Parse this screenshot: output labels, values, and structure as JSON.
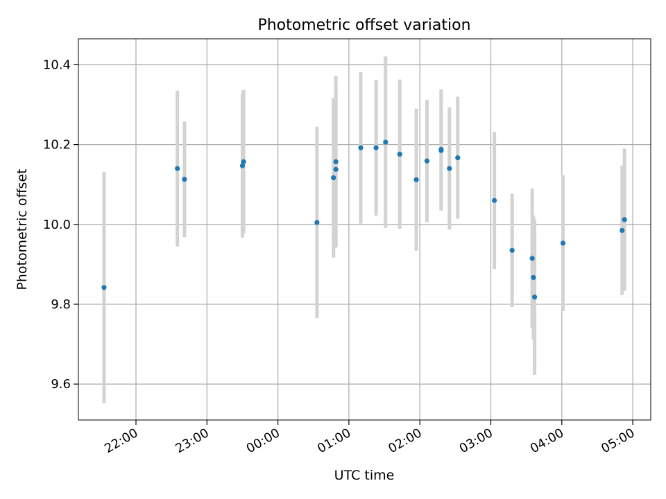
{
  "chart_data": {
    "type": "scatter",
    "title": "Photometric offset variation",
    "xlabel": "UTC time",
    "ylabel": "Photometric offset",
    "grid": true,
    "x_axis": {
      "kind": "time",
      "tick_labels": [
        "22:00",
        "23:00",
        "00:00",
        "01:00",
        "02:00",
        "03:00",
        "04:00",
        "05:00"
      ]
    },
    "ylim": [
      9.51,
      10.465
    ],
    "y_ticks": [
      "9.6",
      "9.8",
      "10.0",
      "10.2",
      "10.4"
    ],
    "colors": {
      "marker": "#1f77b4",
      "errorbar": "#d3d3d3",
      "grid": "#b0b0b0"
    },
    "points": [
      {
        "time": "21:33",
        "y": 9.842,
        "err": 0.29
      },
      {
        "time": "22:35",
        "y": 10.14,
        "err": 0.195
      },
      {
        "time": "22:41",
        "y": 10.113,
        "err": 0.145
      },
      {
        "time": "23:30",
        "y": 10.147,
        "err": 0.18
      },
      {
        "time": "23:31",
        "y": 10.157,
        "err": 0.18
      },
      {
        "time": "00:33",
        "y": 10.005,
        "err": 0.24
      },
      {
        "time": "00:47",
        "y": 10.117,
        "err": 0.2
      },
      {
        "time": "00:49",
        "y": 10.157,
        "err": 0.215
      },
      {
        "time": "00:49",
        "y": 10.138,
        "err": 0.195
      },
      {
        "time": "01:10",
        "y": 10.192,
        "err": 0.19
      },
      {
        "time": "01:23",
        "y": 10.192,
        "err": 0.17
      },
      {
        "time": "01:31",
        "y": 10.206,
        "err": 0.215
      },
      {
        "time": "01:43",
        "y": 10.176,
        "err": 0.187
      },
      {
        "time": "01:57",
        "y": 10.112,
        "err": 0.178
      },
      {
        "time": "02:06",
        "y": 10.159,
        "err": 0.153
      },
      {
        "time": "02:18",
        "y": 10.185,
        "err": 0.15
      },
      {
        "time": "02:18",
        "y": 10.188,
        "err": 0.15
      },
      {
        "time": "02:25",
        "y": 10.14,
        "err": 0.153
      },
      {
        "time": "02:32",
        "y": 10.167,
        "err": 0.153
      },
      {
        "time": "03:03",
        "y": 10.06,
        "err": 0.172
      },
      {
        "time": "03:18",
        "y": 9.935,
        "err": 0.142
      },
      {
        "time": "03:35",
        "y": 9.915,
        "err": 0.175
      },
      {
        "time": "03:36",
        "y": 9.867,
        "err": 0.155
      },
      {
        "time": "03:37",
        "y": 9.818,
        "err": 0.195
      },
      {
        "time": "04:01",
        "y": 9.953,
        "err": 0.17
      },
      {
        "time": "04:51",
        "y": 9.985,
        "err": 0.162
      },
      {
        "time": "04:53",
        "y": 10.012,
        "err": 0.178
      }
    ]
  }
}
